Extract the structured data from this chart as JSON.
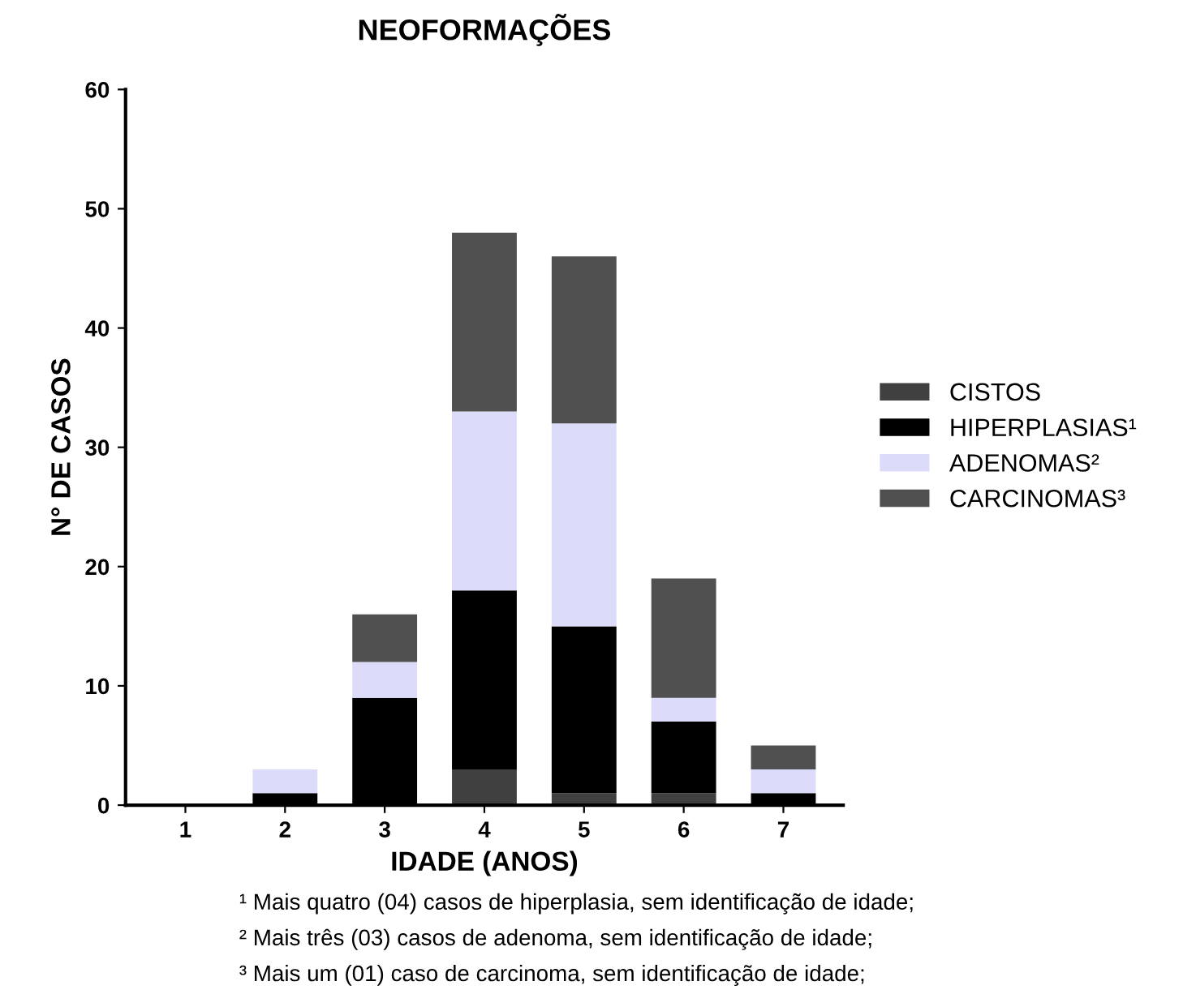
{
  "chart_data": {
    "type": "bar",
    "stacked": true,
    "title": "NEOFORMAÇÕES",
    "xlabel": "IDADE (ANOS)",
    "ylabel": "N° DE CASOS",
    "categories": [
      "1",
      "2",
      "3",
      "4",
      "5",
      "6",
      "7"
    ],
    "series": [
      {
        "name": "CISTOS",
        "color": "#404040",
        "values": [
          0,
          0,
          0,
          3,
          1,
          1,
          0
        ]
      },
      {
        "name": "HIPERPLASIAS¹",
        "color": "#000000",
        "values": [
          0,
          1,
          9,
          15,
          14,
          6,
          1
        ]
      },
      {
        "name": "ADENOMAS²",
        "color": "#dcdcfa",
        "values": [
          0,
          2,
          3,
          15,
          17,
          2,
          2
        ]
      },
      {
        "name": "CARCINOMAS³",
        "color": "#505050",
        "values": [
          0,
          0,
          4,
          15,
          14,
          10,
          2
        ]
      }
    ],
    "ylim": [
      0,
      60
    ],
    "yticks": [
      0,
      10,
      20,
      30,
      40,
      50,
      60
    ],
    "grid": false,
    "legend": "right",
    "annotations": [
      "¹ Mais quatro (04) casos de hiperplasia, sem identificação de idade;",
      "² Mais três (03) casos de adenoma, sem identificação de idade;",
      "³ Mais um (01) caso de carcinoma, sem identificação de idade;"
    ]
  }
}
